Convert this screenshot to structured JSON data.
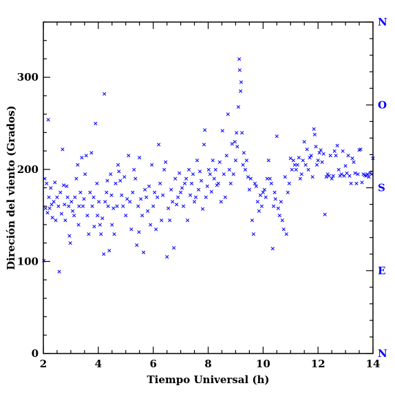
{
  "chart_data": {
    "type": "scatter",
    "title": "",
    "xlabel": "Tiempo Universal (h)",
    "ylabel": "Direción del viento (Grados)",
    "xlim": [
      2,
      14
    ],
    "ylim": [
      0,
      360
    ],
    "x_ticks": [
      2,
      4,
      6,
      8,
      10,
      12,
      14
    ],
    "y_ticks": [
      0,
      100,
      200,
      300
    ],
    "right_axis_labels": [
      {
        "value": 0,
        "label": "N"
      },
      {
        "value": 90,
        "label": "E"
      },
      {
        "value": 180,
        "label": "S"
      },
      {
        "value": 270,
        "label": "O"
      },
      {
        "value": 360,
        "label": "N"
      }
    ],
    "grid": false,
    "marker": "x",
    "series": [
      {
        "color": "#0000ff",
        "points": [
          [
            2.02,
            101
          ],
          [
            2.05,
            190
          ],
          [
            2.08,
            158
          ],
          [
            2.12,
            185
          ],
          [
            2.15,
            153
          ],
          [
            2.18,
            254
          ],
          [
            2.2,
            170
          ],
          [
            2.23,
            158
          ],
          [
            2.27,
            180
          ],
          [
            2.3,
            162
          ],
          [
            2.33,
            148
          ],
          [
            2.38,
            165
          ],
          [
            2.42,
            186
          ],
          [
            2.45,
            145
          ],
          [
            2.5,
            170
          ],
          [
            2.55,
            160
          ],
          [
            2.58,
            89
          ],
          [
            2.62,
            175
          ],
          [
            2.66,
            152
          ],
          [
            2.7,
            222
          ],
          [
            2.74,
            183
          ],
          [
            2.77,
            162
          ],
          [
            2.8,
            145
          ],
          [
            2.85,
            182
          ],
          [
            2.88,
            170
          ],
          [
            2.92,
            160
          ],
          [
            2.95,
            128
          ],
          [
            2.98,
            120
          ],
          [
            3.02,
            165
          ],
          [
            3.07,
            155
          ],
          [
            3.12,
            150
          ],
          [
            3.15,
            170
          ],
          [
            3.2,
            190
          ],
          [
            3.25,
            205
          ],
          [
            3.28,
            140
          ],
          [
            3.3,
            160
          ],
          [
            3.35,
            175
          ],
          [
            3.4,
            213
          ],
          [
            3.44,
            160
          ],
          [
            3.48,
            168
          ],
          [
            3.52,
            195
          ],
          [
            3.56,
            215
          ],
          [
            3.6,
            150
          ],
          [
            3.65,
            130
          ],
          [
            3.7,
            175
          ],
          [
            3.75,
            218
          ],
          [
            3.78,
            160
          ],
          [
            3.83,
            170
          ],
          [
            3.85,
            138
          ],
          [
            3.9,
            250
          ],
          [
            3.95,
            185
          ],
          [
            3.97,
            150
          ],
          [
            4.02,
            165
          ],
          [
            4.06,
            140
          ],
          [
            4.1,
            130
          ],
          [
            4.15,
            147
          ],
          [
            4.2,
            108
          ],
          [
            4.22,
            282
          ],
          [
            4.25,
            165
          ],
          [
            4.3,
            175
          ],
          [
            4.33,
            188
          ],
          [
            4.36,
            160
          ],
          [
            4.4,
            112
          ],
          [
            4.45,
            195
          ],
          [
            4.48,
            172
          ],
          [
            4.5,
            140
          ],
          [
            4.55,
            158
          ],
          [
            4.58,
            130
          ],
          [
            4.63,
            185
          ],
          [
            4.68,
            160
          ],
          [
            4.72,
            205
          ],
          [
            4.75,
            198
          ],
          [
            4.8,
            188
          ],
          [
            4.85,
            172
          ],
          [
            4.9,
            160
          ],
          [
            4.95,
            192
          ],
          [
            5.0,
            150
          ],
          [
            5.05,
            168
          ],
          [
            5.1,
            215
          ],
          [
            5.15,
            165
          ],
          [
            5.2,
            135
          ],
          [
            5.25,
            175
          ],
          [
            5.3,
            200
          ],
          [
            5.35,
            190
          ],
          [
            5.4,
            118
          ],
          [
            5.45,
            160
          ],
          [
            5.48,
            132
          ],
          [
            5.5,
            213
          ],
          [
            5.55,
            168
          ],
          [
            5.6,
            150
          ],
          [
            5.65,
            110
          ],
          [
            5.7,
            178
          ],
          [
            5.75,
            170
          ],
          [
            5.8,
            155
          ],
          [
            5.85,
            182
          ],
          [
            5.9,
            140
          ],
          [
            5.95,
            205
          ],
          [
            6.0,
            160
          ],
          [
            6.05,
            175
          ],
          [
            6.1,
            135
          ],
          [
            6.15,
            170
          ],
          [
            6.2,
            227
          ],
          [
            6.25,
            185
          ],
          [
            6.3,
            145
          ],
          [
            6.35,
            172
          ],
          [
            6.4,
            200
          ],
          [
            6.45,
            208
          ],
          [
            6.5,
            105
          ],
          [
            6.55,
            158
          ],
          [
            6.6,
            145
          ],
          [
            6.65,
            178
          ],
          [
            6.7,
            165
          ],
          [
            6.75,
            115
          ],
          [
            6.8,
            190
          ],
          [
            6.85,
            162
          ],
          [
            6.9,
            170
          ],
          [
            6.95,
            196
          ],
          [
            7.0,
            175
          ],
          [
            7.05,
            180
          ],
          [
            7.1,
            160
          ],
          [
            7.15,
            185
          ],
          [
            7.2,
            190
          ],
          [
            7.25,
            145
          ],
          [
            7.3,
            200
          ],
          [
            7.35,
            172
          ],
          [
            7.4,
            185
          ],
          [
            7.45,
            195
          ],
          [
            7.5,
            165
          ],
          [
            7.55,
            170
          ],
          [
            7.6,
            210
          ],
          [
            7.65,
            178
          ],
          [
            7.7,
            198
          ],
          [
            7.75,
            188
          ],
          [
            7.8,
            157
          ],
          [
            7.85,
            227
          ],
          [
            7.88,
            243
          ],
          [
            7.92,
            170
          ],
          [
            7.97,
            182
          ],
          [
            8.02,
            200
          ],
          [
            8.07,
            195
          ],
          [
            8.12,
            176
          ],
          [
            8.17,
            210
          ],
          [
            8.22,
            190
          ],
          [
            8.27,
            200
          ],
          [
            8.32,
            183
          ],
          [
            8.37,
            185
          ],
          [
            8.42,
            208
          ],
          [
            8.47,
            165
          ],
          [
            8.52,
            242
          ],
          [
            8.57,
            195
          ],
          [
            8.62,
            170
          ],
          [
            8.67,
            215
          ],
          [
            8.72,
            260
          ],
          [
            8.77,
            200
          ],
          [
            8.82,
            185
          ],
          [
            8.87,
            228
          ],
          [
            8.92,
            195
          ],
          [
            8.97,
            230
          ],
          [
            9.0,
            210
          ],
          [
            9.03,
            240
          ],
          [
            9.06,
            225
          ],
          [
            9.1,
            268
          ],
          [
            9.13,
            320
          ],
          [
            9.15,
            308
          ],
          [
            9.18,
            285
          ],
          [
            9.2,
            295
          ],
          [
            9.23,
            240
          ],
          [
            9.27,
            205
          ],
          [
            9.3,
            218
          ],
          [
            9.35,
            200
          ],
          [
            9.4,
            210
          ],
          [
            9.45,
            192
          ],
          [
            9.5,
            178
          ],
          [
            9.55,
            190
          ],
          [
            9.6,
            145
          ],
          [
            9.65,
            130
          ],
          [
            9.7,
            185
          ],
          [
            9.75,
            182
          ],
          [
            9.8,
            165
          ],
          [
            9.85,
            155
          ],
          [
            9.9,
            172
          ],
          [
            9.95,
            160
          ],
          [
            10.0,
            175
          ],
          [
            10.05,
            178
          ],
          [
            10.1,
            170
          ],
          [
            10.15,
            190
          ],
          [
            10.2,
            210
          ],
          [
            10.25,
            190
          ],
          [
            10.3,
            185
          ],
          [
            10.35,
            114
          ],
          [
            10.38,
            160
          ],
          [
            10.42,
            175
          ],
          [
            10.45,
            168
          ],
          [
            10.5,
            236
          ],
          [
            10.55,
            158
          ],
          [
            10.6,
            150
          ],
          [
            10.65,
            165
          ],
          [
            10.7,
            145
          ],
          [
            10.75,
            135
          ],
          [
            10.8,
            192
          ],
          [
            10.85,
            130
          ],
          [
            10.9,
            175
          ],
          [
            10.95,
            185
          ],
          [
            11.0,
            212
          ],
          [
            11.05,
            200
          ],
          [
            11.1,
            210
          ],
          [
            11.15,
            205
          ],
          [
            11.2,
            200
          ],
          [
            11.25,
            205
          ],
          [
            11.3,
            213
          ],
          [
            11.35,
            190
          ],
          [
            11.4,
            195
          ],
          [
            11.45,
            210
          ],
          [
            11.5,
            230
          ],
          [
            11.55,
            205
          ],
          [
            11.6,
            222
          ],
          [
            11.65,
            200
          ],
          [
            11.7,
            213
          ],
          [
            11.75,
            215
          ],
          [
            11.8,
            192
          ],
          [
            11.85,
            244
          ],
          [
            11.88,
            238
          ],
          [
            11.92,
            225
          ],
          [
            11.96,
            205
          ],
          [
            12.0,
            210
          ],
          [
            12.05,
            218
          ],
          [
            12.1,
            221
          ],
          [
            12.15,
            208
          ],
          [
            12.2,
            217
          ],
          [
            12.25,
            151
          ],
          [
            12.3,
            192
          ],
          [
            12.35,
            195
          ],
          [
            12.4,
            193
          ],
          [
            12.45,
            215
          ],
          [
            12.5,
            190
          ],
          [
            12.55,
            193
          ],
          [
            12.6,
            220
          ],
          [
            12.65,
            215
          ],
          [
            12.7,
            226
          ],
          [
            12.75,
            200
          ],
          [
            12.8,
            193
          ],
          [
            12.85,
            195
          ],
          [
            12.9,
            220
          ],
          [
            12.95,
            193
          ],
          [
            13.0,
            204
          ],
          [
            13.05,
            196
          ],
          [
            13.1,
            215
          ],
          [
            13.15,
            193
          ],
          [
            13.2,
            185
          ],
          [
            13.25,
            212
          ],
          [
            13.3,
            208
          ],
          [
            13.35,
            196
          ],
          [
            13.4,
            185
          ],
          [
            13.45,
            195
          ],
          [
            13.5,
            221
          ],
          [
            13.55,
            222
          ],
          [
            13.6,
            186
          ],
          [
            13.65,
            195
          ],
          [
            13.7,
            194
          ],
          [
            13.75,
            193
          ],
          [
            13.8,
            195
          ],
          [
            13.85,
            192
          ],
          [
            13.9,
            196
          ],
          [
            13.95,
            195
          ],
          [
            14.0,
            212
          ]
        ]
      }
    ]
  }
}
